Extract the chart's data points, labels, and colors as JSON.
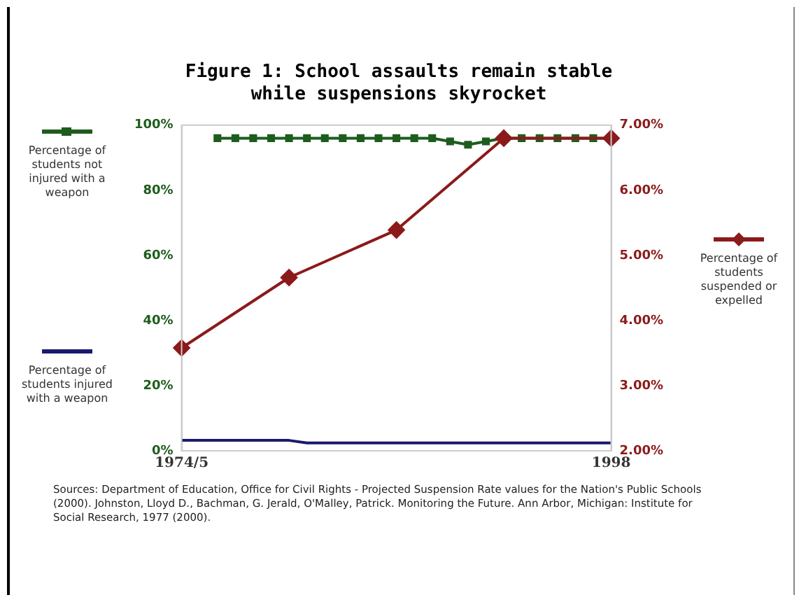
{
  "chart_data": {
    "type": "line",
    "title": "Figure 1:  School assaults remain stable while suspensions skyrocket",
    "categories": [
      "1974/5",
      null,
      null,
      null,
      null,
      null,
      null,
      null,
      null,
      null,
      null,
      null,
      null,
      null,
      null,
      null,
      null,
      null,
      null,
      null,
      null,
      null,
      null,
      null,
      "1998"
    ],
    "series": [
      {
        "name": "Percentage of students not injured with a weapon",
        "color": "#1e5c1e",
        "marker": "square",
        "values": [
          null,
          null,
          96,
          96,
          96,
          96,
          96,
          96,
          96,
          96,
          96,
          96,
          96,
          96,
          96,
          95,
          94,
          95,
          96,
          96,
          96,
          96,
          96,
          96,
          96
        ]
      },
      {
        "name": "Percentage of students injured with a weapon",
        "color": "#1a1a6e",
        "marker": "none",
        "values": [
          3.2,
          3.2,
          3.2,
          3.2,
          3.2,
          3.2,
          3.2,
          2.4,
          2.4,
          2.4,
          2.4,
          2.4,
          2.4,
          2.4,
          2.4,
          2.4,
          2.4,
          2.4,
          2.4,
          2.4,
          2.4,
          2.4,
          2.4,
          2.4,
          2.4
        ]
      },
      {
        "name": "Percentage of students suspended or expelled",
        "color": "#8b1a1a",
        "marker": "diamond",
        "axis": "y2",
        "values": [
          3.58,
          null,
          null,
          null,
          null,
          null,
          4.66,
          null,
          null,
          null,
          null,
          null,
          5.39,
          null,
          null,
          null,
          null,
          null,
          6.8,
          null,
          null,
          null,
          null,
          null,
          6.8
        ]
      }
    ],
    "ylim": [
      0,
      100
    ],
    "yticks": [
      {
        "value": 0,
        "label": "0%"
      },
      {
        "value": 20,
        "label": "20%"
      },
      {
        "value": 40,
        "label": "40%"
      },
      {
        "value": 60,
        "label": "60%"
      },
      {
        "value": 80,
        "label": "80%"
      },
      {
        "value": 100,
        "label": "100%"
      }
    ],
    "y2lim": [
      2,
      7
    ],
    "y2ticks": [
      {
        "value": 2,
        "label": "2.00%"
      },
      {
        "value": 3,
        "label": "3.00%"
      },
      {
        "value": 4,
        "label": "4.00%"
      },
      {
        "value": 5,
        "label": "5.00%"
      },
      {
        "value": 6,
        "label": "6.00%"
      },
      {
        "value": 7,
        "label": "7.00%"
      }
    ],
    "grid": false,
    "legend": "left",
    "annotations": [
      "Sources: Department of Education, Office for Civil Rights - Projected Suspension Rate values for the Nation's Public Schools (2000).  Johnston, Lloyd D., Bachman, G. Jerald, O'Malley, Patrick. Monitoring the Future.  Ann Arbor, Michigan: Institute for Social Research, 1977 (2000)."
    ]
  }
}
